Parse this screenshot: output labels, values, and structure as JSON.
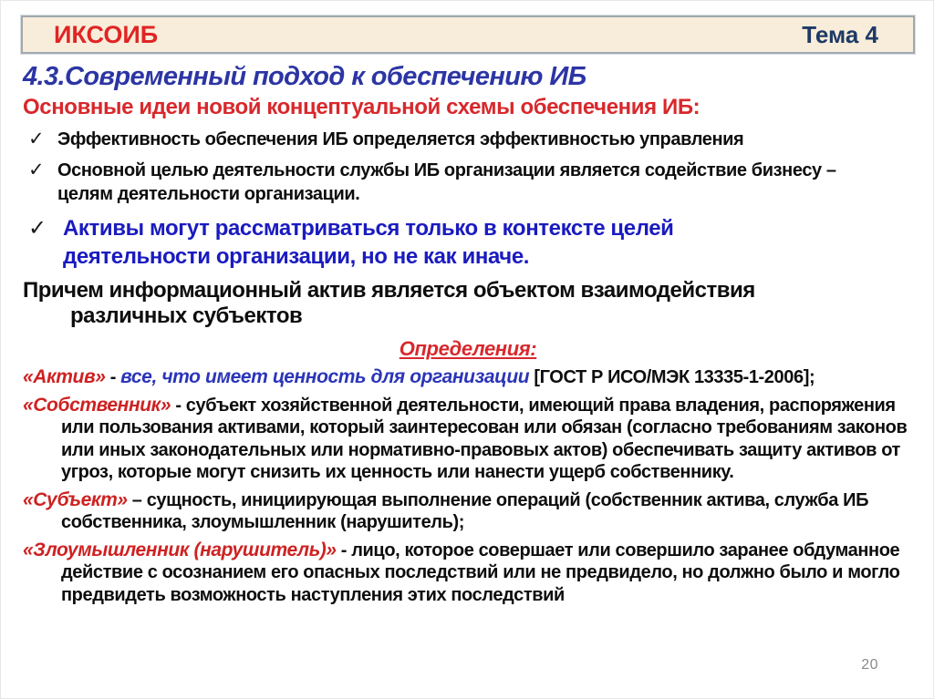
{
  "header": {
    "brand": "ИКСОИБ",
    "topic": "Тема 4"
  },
  "title": "4.3.Современный подход к  обеспечению ИБ",
  "heading": "Основные идеи новой концептуальной схемы обеспечения ИБ:",
  "icons": {
    "checkmark": "✓"
  },
  "checklist": [
    {
      "text": "Эффективность обеспечения ИБ определяется эффективностью управления"
    },
    {
      "text": "Основной целью деятельности службы ИБ организации является содействие бизнесу – целям деятельности организации."
    },
    {
      "text": "Активы могут рассматриваться только в контексте целей деятельности организации, но не как иначе."
    }
  ],
  "note": "Причем  информационный актив является объектом взаимодействия различных субъектов",
  "definitions_heading": "Определения:",
  "definitions": [
    {
      "term": "«Актив»",
      "dash": " - ",
      "value": "все, что имеет ценность для организации",
      "source": " [ГОСТ Р ИСО/МЭК 13335-1-2006];"
    },
    {
      "term": "«Собственник»",
      "dash": " - ",
      "body": "субъект хозяйственной деятельности, имеющий права владения, распоряжения или пользования активами, который заинтересован или обязан (согласно требованиям законов или иных законодательных или нормативно-правовых актов) обеспечивать защиту активов от угроз, которые могут снизить их ценность или нанести ущерб собственнику."
    },
    {
      "term": "«Субъект»",
      "dash": " – ",
      "body": "сущность, инициирующая выполнение операций (собственник актива, служба ИБ собственника, злоумышленник (нарушитель);"
    },
    {
      "term": "«Злоумышленник (нарушитель)»",
      "dash": " - ",
      "body": "лицо, которое совершает или совершило заранее обдуманное действие с осознанием его опасных последствий или не предвидело, но должно было и могло предвидеть возможность наступления этих последствий"
    }
  ],
  "page_number": "20",
  "colors": {
    "brand_red": "#E02424",
    "heading_red": "#D8282C",
    "term_red": "#CE2222",
    "title_blue": "#2C35A4",
    "bullet_blue": "#1A1BBF",
    "definition_value_blue": "#2B35B8",
    "topic_navy": "#1E3A66",
    "header_background": "#F8EDDA",
    "header_border_gray": "#A0A8B0",
    "text_black": "#0D0D0D",
    "page_number_gray": "#8A8A8A"
  }
}
